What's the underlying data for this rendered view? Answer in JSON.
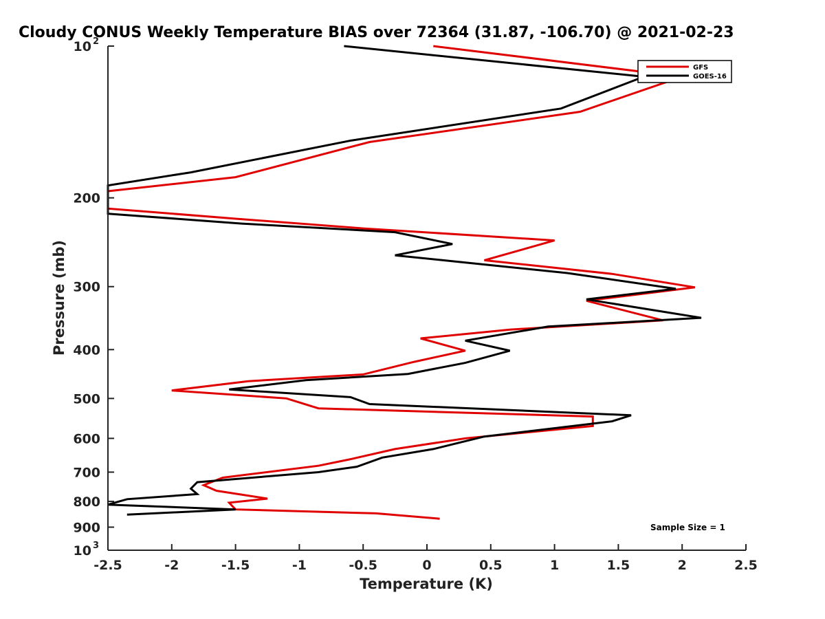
{
  "chart_data": {
    "type": "line",
    "title": "Cloudy CONUS Weekly Temperature BIAS over 72364 (31.87, -106.70) @ 2021-02-23",
    "xlabel": "Temperature (K)",
    "ylabel": "Pressure (mb)",
    "xlim": [
      -2.5,
      2.5
    ],
    "ylim": [
      100,
      1000
    ],
    "yscale": "log",
    "y_reversed": true,
    "x_ticks": [
      "-2.5",
      "-2",
      "-1.5",
      "-1",
      "-0.5",
      "0",
      "0.5",
      "1",
      "1.5",
      "2",
      "2.5"
    ],
    "y_ticks": [
      {
        "value": 100,
        "base": "10",
        "exp": "2"
      },
      {
        "value": 200,
        "label": "200"
      },
      {
        "value": 300,
        "label": "300"
      },
      {
        "value": 400,
        "label": "400"
      },
      {
        "value": 500,
        "label": "500"
      },
      {
        "value": 600,
        "label": "600"
      },
      {
        "value": 700,
        "label": "700"
      },
      {
        "value": 800,
        "label": "800"
      },
      {
        "value": 900,
        "label": "900"
      },
      {
        "value": 1000,
        "base": "10",
        "exp": "3"
      }
    ],
    "legend_position": "top-right",
    "annotation": "Sample Size = 1",
    "series": [
      {
        "name": "GFS",
        "color": "#e00000",
        "points": [
          [
            0.05,
            100
          ],
          [
            2.0,
            115
          ],
          [
            1.2,
            135
          ],
          [
            -0.45,
            155
          ],
          [
            -1.5,
            182
          ],
          [
            -2.5,
            194
          ],
          [
            -2.5,
            210
          ],
          [
            -1.5,
            220
          ],
          [
            -0.5,
            230
          ],
          [
            1.0,
            243
          ],
          [
            0.45,
            266
          ],
          [
            1.45,
            283
          ],
          [
            2.1,
            301
          ],
          [
            1.25,
            320
          ],
          [
            1.85,
            350
          ],
          [
            0.65,
            365
          ],
          [
            -0.05,
            380
          ],
          [
            0.3,
            402
          ],
          [
            -0.1,
            423
          ],
          [
            -0.5,
            448
          ],
          [
            -1.4,
            462
          ],
          [
            -2.0,
            482
          ],
          [
            -1.1,
            500
          ],
          [
            -0.85,
            523
          ],
          [
            1.3,
            543
          ],
          [
            1.3,
            567
          ],
          [
            0.3,
            600
          ],
          [
            -0.25,
            630
          ],
          [
            -0.6,
            660
          ],
          [
            -0.85,
            680
          ],
          [
            -1.6,
            718
          ],
          [
            -1.75,
            743
          ],
          [
            -1.65,
            762
          ],
          [
            -1.25,
            790
          ],
          [
            -1.55,
            805
          ],
          [
            -1.5,
            830
          ],
          [
            -0.4,
            845
          ],
          [
            0.1,
            866
          ]
        ]
      },
      {
        "name": "GOES-16",
        "color": "#000000",
        "points": [
          [
            -0.65,
            100
          ],
          [
            1.7,
            115
          ],
          [
            1.05,
            133
          ],
          [
            -0.6,
            154
          ],
          [
            -1.85,
            178
          ],
          [
            -2.5,
            189
          ],
          [
            -2.5,
            215
          ],
          [
            -1.45,
            225
          ],
          [
            -0.25,
            234
          ],
          [
            0.2,
            247
          ],
          [
            -0.25,
            260
          ],
          [
            1.1,
            282
          ],
          [
            1.95,
            303
          ],
          [
            1.25,
            318
          ],
          [
            2.15,
            346
          ],
          [
            0.95,
            360
          ],
          [
            0.3,
            384
          ],
          [
            0.65,
            402
          ],
          [
            0.3,
            425
          ],
          [
            -0.15,
            447
          ],
          [
            -0.95,
            460
          ],
          [
            -1.55,
            480
          ],
          [
            -0.6,
            497
          ],
          [
            -0.45,
            513
          ],
          [
            1.6,
            540
          ],
          [
            1.45,
            555
          ],
          [
            0.45,
            595
          ],
          [
            0.05,
            630
          ],
          [
            -0.35,
            655
          ],
          [
            -0.55,
            683
          ],
          [
            -0.85,
            700
          ],
          [
            -1.8,
            733
          ],
          [
            -1.85,
            755
          ],
          [
            -1.8,
            774
          ],
          [
            -2.35,
            792
          ],
          [
            -2.5,
            812
          ],
          [
            -1.5,
            830
          ],
          [
            -2.35,
            850
          ]
        ]
      }
    ]
  }
}
